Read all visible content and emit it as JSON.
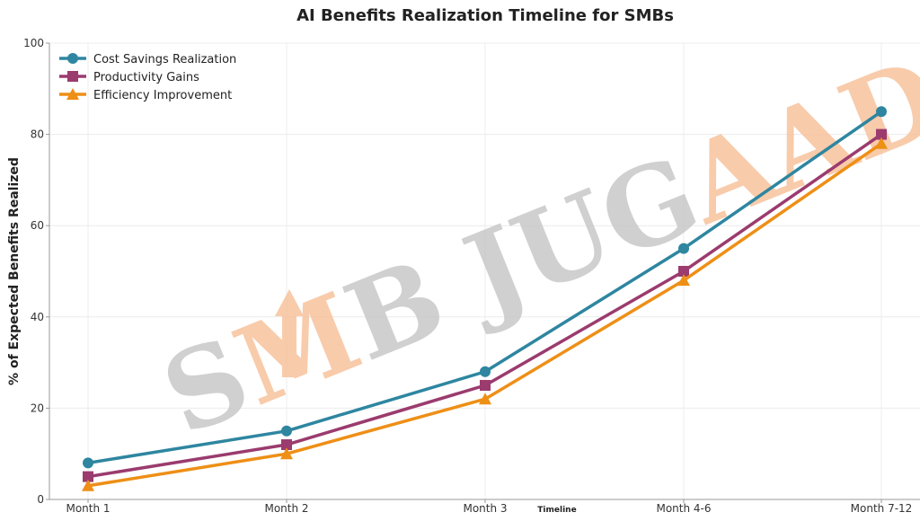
{
  "chart_data": {
    "type": "line",
    "title": "AI Benefits Realization Timeline for SMBs",
    "xlabel": "Timeline",
    "ylabel": "% of Expected Benefits Realized",
    "categories": [
      "Month 1",
      "Month 2",
      "Month 3",
      "Month 4-6",
      "Month 7-12"
    ],
    "ylim": [
      0,
      100
    ],
    "yticks": [
      0,
      20,
      40,
      60,
      80,
      100
    ],
    "grid": true,
    "legend_position": "top-left",
    "series": [
      {
        "name": "Cost Savings Realization",
        "values": [
          8,
          15,
          28,
          55,
          85
        ],
        "color": "#2e86a0",
        "marker": "circle"
      },
      {
        "name": "Productivity Gains",
        "values": [
          5,
          12,
          25,
          50,
          80
        ],
        "color": "#9b3b6e",
        "marker": "square"
      },
      {
        "name": "Efficiency Improvement",
        "values": [
          3,
          10,
          22,
          48,
          78
        ],
        "color": "#ee8f16",
        "marker": "triangle"
      }
    ]
  },
  "watermark": {
    "text_left": "S",
    "text_accent1": "M",
    "text_mid": "B JUG",
    "text_accent2": "AAD",
    "gray": "#c8c8c8",
    "accent": "#f7c29c"
  }
}
